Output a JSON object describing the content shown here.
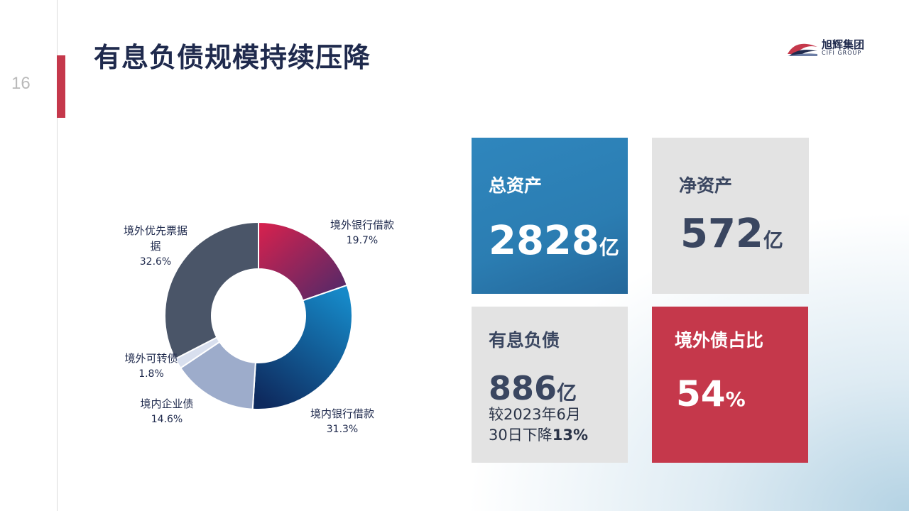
{
  "page": {
    "number": "16",
    "title": "有息负债规模持续压降"
  },
  "logo": {
    "name_cn": "旭辉集团",
    "name_en": "CIFI GROUP"
  },
  "colors": {
    "accent_red": "#c5384b",
    "title_navy": "#1f2a4d",
    "card_blue": "#2b7db2",
    "card_gray": "#e3e3e3"
  },
  "cards": [
    {
      "label": "总资产",
      "value": "2828",
      "unit": "亿"
    },
    {
      "label": "净资产",
      "value": "572",
      "unit": "亿"
    },
    {
      "label": "有息负债",
      "value": "886",
      "unit": "亿",
      "note_line1": "较2023年6月",
      "note_line2_prefix": "30日下降",
      "note_line2_bold": "13%"
    },
    {
      "label": "境外债占比",
      "value": "54",
      "unit": "%"
    }
  ],
  "chart_data": {
    "type": "pie",
    "donut": true,
    "categories": [
      "境外银行借款",
      "境内银行借款",
      "境内企业债",
      "境外可转债",
      "境外优先票据"
    ],
    "values": [
      19.7,
      31.3,
      14.6,
      1.8,
      32.6
    ],
    "value_labels": [
      "19.7%",
      "31.3%",
      "14.6%",
      "1.8%",
      "32.6%"
    ],
    "label_lines": [
      [
        "境外银行借款"
      ],
      [
        "境内银行借款"
      ],
      [
        "境内企业债"
      ],
      [
        "境外可转债"
      ],
      [
        "境外优先票据",
        "据"
      ]
    ],
    "colors": [
      "#c22a55",
      "#1a5d97",
      "#9daccb",
      "#d8dfee",
      "#4a5568"
    ]
  }
}
